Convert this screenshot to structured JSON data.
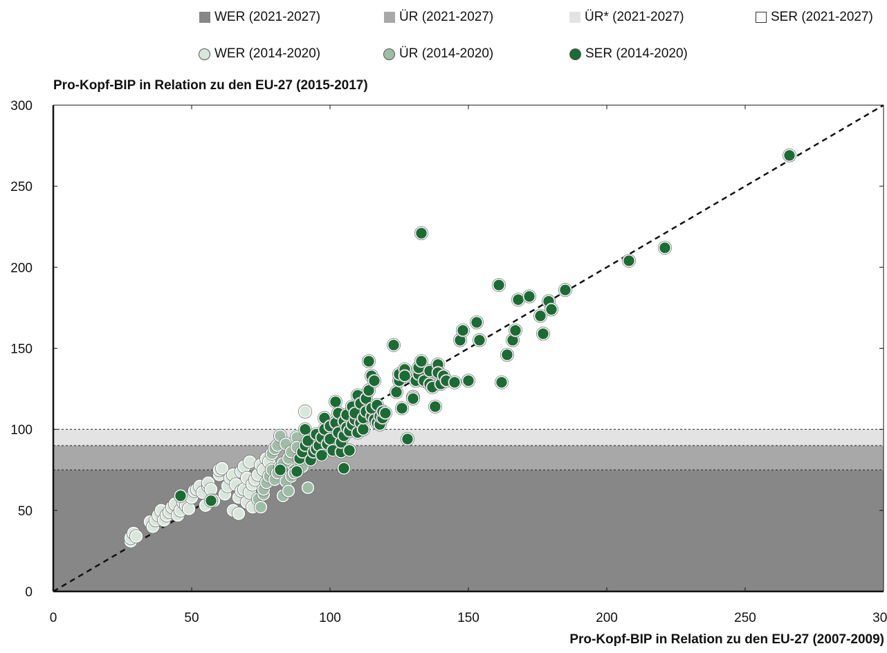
{
  "legend": {
    "band_wer": "WER (2021-2027)",
    "band_ur": "ÜR (2021-2027)",
    "band_ur_star": "ÜR* (2021-2027)",
    "band_ser": "SER (2021-2027)",
    "pt_wer": "WER (2014-2020)",
    "pt_ur": "ÜR (2014-2020)",
    "pt_ser": "SER (2014-2020)"
  },
  "colors": {
    "band_wer": "#878787",
    "band_ur": "#a8a8a8",
    "band_ur_star": "#e3e3e3",
    "pt_wer": "#d9e6dc",
    "pt_ur": "#9fbca7",
    "pt_ser": "#1b6b35"
  },
  "chart_data": {
    "type": "scatter",
    "xlabel": "Pro-Kopf-BIP in Relation zu den EU-27 (2007-2009)",
    "ylabel": "Pro-Kopf-BIP in Relation zu den EU-27 (2015-2017)",
    "xlim": [
      0,
      300
    ],
    "ylim": [
      0,
      300
    ],
    "xticks": [
      "0",
      "50",
      "100",
      "150",
      "200",
      "250",
      "300"
    ],
    "yticks": [
      "0",
      "50",
      "100",
      "150",
      "200",
      "250",
      "300"
    ],
    "bands": [
      {
        "name": "WER (2021-2027)",
        "from": 0,
        "to": 75
      },
      {
        "name": "ÜR (2021-2027)",
        "from": 75,
        "to": 90
      },
      {
        "name": "ÜR* (2021-2027)",
        "from": 90,
        "to": 100
      },
      {
        "name": "SER (2021-2027)",
        "from": 100,
        "to": 300
      }
    ],
    "reference_line": {
      "from": [
        0,
        0
      ],
      "to": [
        300,
        300
      ],
      "style": "dashed"
    },
    "series": [
      {
        "name": "WER (2014-2020)",
        "points": [
          [
            28,
            31
          ],
          [
            28,
            33
          ],
          [
            29,
            36
          ],
          [
            30,
            34
          ],
          [
            35,
            43
          ],
          [
            36,
            40
          ],
          [
            37,
            44
          ],
          [
            38,
            47
          ],
          [
            39,
            50
          ],
          [
            40,
            44
          ],
          [
            41,
            47
          ],
          [
            42,
            49
          ],
          [
            43,
            52
          ],
          [
            44,
            54
          ],
          [
            45,
            47
          ],
          [
            46,
            50
          ],
          [
            47,
            55
          ],
          [
            48,
            53
          ],
          [
            49,
            51
          ],
          [
            50,
            58
          ],
          [
            51,
            62
          ],
          [
            52,
            63
          ],
          [
            53,
            65
          ],
          [
            54,
            61
          ],
          [
            55,
            53
          ],
          [
            56,
            65
          ],
          [
            56,
            67
          ],
          [
            57,
            63
          ],
          [
            58,
            56
          ],
          [
            60,
            72
          ],
          [
            60,
            75
          ],
          [
            61,
            76
          ],
          [
            62,
            60
          ],
          [
            63,
            65
          ],
          [
            64,
            70
          ],
          [
            65,
            72
          ],
          [
            65,
            50
          ],
          [
            66,
            66
          ],
          [
            67,
            48
          ],
          [
            67,
            58
          ],
          [
            68,
            62
          ],
          [
            68,
            74
          ],
          [
            69,
            63
          ],
          [
            69,
            77
          ],
          [
            70,
            55
          ],
          [
            70,
            70
          ],
          [
            71,
            61
          ],
          [
            71,
            80
          ],
          [
            72,
            52
          ],
          [
            72,
            66
          ],
          [
            73,
            69
          ],
          [
            74,
            72
          ],
          [
            75,
            78
          ],
          [
            76,
            75
          ],
          [
            77,
            82
          ],
          [
            78,
            80
          ],
          [
            91,
            111
          ]
        ]
      },
      {
        "name": "ÜR (2014-2020)",
        "points": [
          [
            74,
            57
          ],
          [
            75,
            52
          ],
          [
            76,
            60
          ],
          [
            76,
            63
          ],
          [
            77,
            67
          ],
          [
            78,
            71
          ],
          [
            79,
            75
          ],
          [
            79,
            85
          ],
          [
            80,
            69
          ],
          [
            80,
            88
          ],
          [
            81,
            73
          ],
          [
            81,
            90
          ],
          [
            82,
            77
          ],
          [
            82,
            96
          ],
          [
            83,
            59
          ],
          [
            83,
            79
          ],
          [
            84,
            68
          ],
          [
            84,
            91
          ],
          [
            85,
            62
          ],
          [
            85,
            82
          ],
          [
            86,
            71
          ],
          [
            86,
            86
          ],
          [
            87,
            75
          ],
          [
            87,
            73
          ],
          [
            88,
            95
          ],
          [
            88,
            89
          ],
          [
            89,
            80
          ],
          [
            90,
            77
          ],
          [
            91,
            84
          ],
          [
            92,
            64
          ]
        ]
      },
      {
        "name": "SER (2014-2020)",
        "points": [
          [
            46,
            59
          ],
          [
            57,
            56
          ],
          [
            82,
            75
          ],
          [
            88,
            74
          ],
          [
            89,
            82
          ],
          [
            90,
            86
          ],
          [
            91,
            90
          ],
          [
            91,
            100
          ],
          [
            92,
            93
          ],
          [
            93,
            81
          ],
          [
            94,
            86
          ],
          [
            95,
            88
          ],
          [
            95,
            97
          ],
          [
            96,
            90
          ],
          [
            97,
            84
          ],
          [
            97,
            95
          ],
          [
            98,
            100
          ],
          [
            98,
            107
          ],
          [
            99,
            91
          ],
          [
            100,
            94
          ],
          [
            100,
            102
          ],
          [
            101,
            87
          ],
          [
            102,
            104
          ],
          [
            102,
            117
          ],
          [
            103,
            98
          ],
          [
            103,
            110
          ],
          [
            104,
            86
          ],
          [
            104,
            92
          ],
          [
            105,
            76
          ],
          [
            105,
            96
          ],
          [
            105,
            105
          ],
          [
            106,
            101
          ],
          [
            106,
            109
          ],
          [
            107,
            87
          ],
          [
            107,
            99
          ],
          [
            108,
            103
          ],
          [
            108,
            114
          ],
          [
            109,
            106
          ],
          [
            109,
            110
          ],
          [
            110,
            98
          ],
          [
            110,
            121
          ],
          [
            111,
            104
          ],
          [
            111,
            116
          ],
          [
            112,
            100
          ],
          [
            112,
            107
          ],
          [
            113,
            111
          ],
          [
            113,
            119
          ],
          [
            114,
            124
          ],
          [
            114,
            142
          ],
          [
            115,
            108
          ],
          [
            115,
            113
          ],
          [
            115,
            133
          ],
          [
            116,
            106
          ],
          [
            116,
            130
          ],
          [
            117,
            104
          ],
          [
            117,
            115
          ],
          [
            118,
            103
          ],
          [
            118,
            108
          ],
          [
            119,
            107
          ],
          [
            119,
            111
          ],
          [
            120,
            110
          ],
          [
            123,
            152
          ],
          [
            124,
            123
          ],
          [
            125,
            130
          ],
          [
            125,
            134
          ],
          [
            126,
            113
          ],
          [
            127,
            137
          ],
          [
            127,
            133
          ],
          [
            128,
            94
          ],
          [
            130,
            120
          ],
          [
            130,
            119
          ],
          [
            131,
            130
          ],
          [
            132,
            134
          ],
          [
            132,
            138
          ],
          [
            133,
            142
          ],
          [
            133,
            221
          ],
          [
            134,
            130
          ],
          [
            136,
            128
          ],
          [
            136,
            136
          ],
          [
            137,
            126
          ],
          [
            138,
            114
          ],
          [
            139,
            140
          ],
          [
            139,
            135
          ],
          [
            140,
            128
          ],
          [
            141,
            133
          ],
          [
            142,
            130
          ],
          [
            145,
            129
          ],
          [
            147,
            155
          ],
          [
            148,
            161
          ],
          [
            150,
            130
          ],
          [
            153,
            166
          ],
          [
            154,
            155
          ],
          [
            161,
            189
          ],
          [
            162,
            129
          ],
          [
            164,
            146
          ],
          [
            166,
            155
          ],
          [
            167,
            161
          ],
          [
            168,
            180
          ],
          [
            172,
            182
          ],
          [
            176,
            170
          ],
          [
            177,
            159
          ],
          [
            179,
            179
          ],
          [
            180,
            174
          ],
          [
            185,
            186
          ],
          [
            208,
            204
          ],
          [
            221,
            212
          ],
          [
            266,
            269
          ]
        ]
      }
    ]
  }
}
